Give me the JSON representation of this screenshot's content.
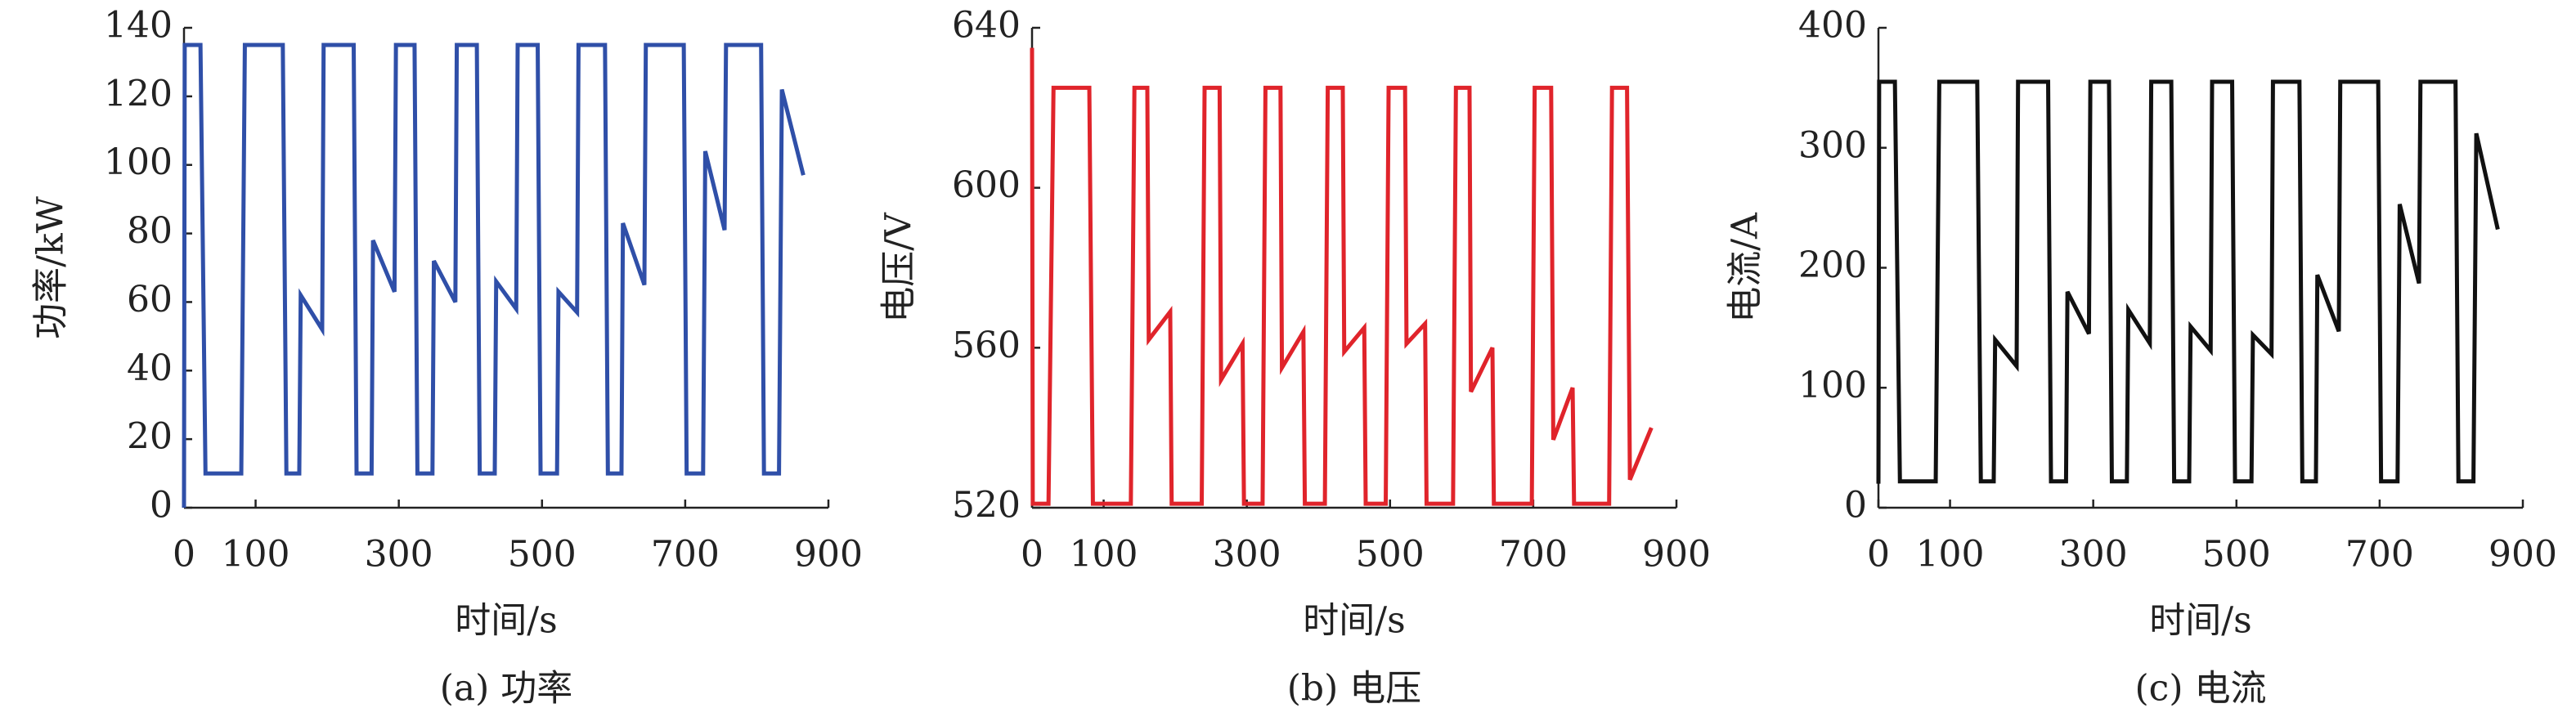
{
  "chart_data": [
    {
      "type": "line",
      "caption": "(a) 功率",
      "ylabel": "功率/kW",
      "xlabel": "时间/s",
      "xlim": [
        0,
        900
      ],
      "xticks": [
        0,
        100,
        300,
        500,
        700,
        900
      ],
      "ylim": [
        0,
        140
      ],
      "yticks": [
        0,
        20,
        40,
        60,
        80,
        100,
        120,
        140
      ],
      "x": [
        0,
        1,
        23,
        30,
        80,
        85,
        138,
        143,
        161,
        163,
        193,
        195,
        237,
        241,
        262,
        264,
        294,
        296,
        322,
        326,
        347,
        349,
        379,
        381,
        409,
        413,
        434,
        436,
        464,
        466,
        494,
        498,
        521,
        523,
        549,
        551,
        588,
        592,
        611,
        613,
        643,
        645,
        698,
        702,
        725,
        728,
        755,
        757,
        806,
        810,
        831,
        835,
        865
      ],
      "color": "#2f4fa8",
      "values": [
        0,
        135,
        135,
        10,
        10,
        135,
        135,
        10,
        10,
        62,
        52,
        135,
        135,
        10,
        10,
        78,
        63,
        135,
        135,
        10,
        10,
        72,
        60,
        135,
        135,
        10,
        10,
        66,
        58,
        135,
        135,
        10,
        10,
        63,
        57,
        135,
        135,
        10,
        10,
        83,
        65,
        135,
        135,
        10,
        10,
        104,
        81,
        135,
        135,
        10,
        10,
        122,
        97
      ]
    },
    {
      "type": "line",
      "caption": "(b) 电压",
      "ylabel": "电压/V",
      "xlabel": "时间/s",
      "xlim": [
        0,
        900
      ],
      "xticks": [
        0,
        100,
        300,
        500,
        700,
        900
      ],
      "ylim": [
        520,
        640
      ],
      "yticks": [
        520,
        560,
        600,
        640
      ],
      "x": [
        0,
        1,
        23,
        30,
        80,
        85,
        138,
        143,
        161,
        163,
        193,
        195,
        237,
        241,
        262,
        264,
        294,
        296,
        322,
        326,
        347,
        349,
        379,
        381,
        409,
        413,
        434,
        436,
        464,
        466,
        494,
        498,
        521,
        523,
        549,
        551,
        588,
        592,
        611,
        613,
        643,
        645,
        698,
        702,
        725,
        728,
        755,
        757,
        806,
        810,
        831,
        835,
        865
      ],
      "color": "#e0242b",
      "values": [
        635,
        521,
        521,
        625,
        625,
        521,
        521,
        625,
        625,
        562,
        569,
        521,
        521,
        625,
        625,
        552,
        561,
        521,
        521,
        625,
        625,
        555,
        564,
        521,
        521,
        625,
        625,
        559,
        565,
        521,
        521,
        625,
        625,
        561,
        566,
        521,
        521,
        625,
        625,
        549,
        560,
        521,
        521,
        625,
        625,
        537,
        550,
        521,
        521,
        625,
        625,
        527,
        540
      ]
    },
    {
      "type": "line",
      "caption": "(c) 电流",
      "ylabel": "电流/A",
      "xlabel": "时间/s",
      "xlim": [
        0,
        900
      ],
      "xticks": [
        0,
        100,
        300,
        500,
        700,
        900
      ],
      "ylim": [
        0,
        400
      ],
      "yticks": [
        0,
        100,
        200,
        300,
        400
      ],
      "x": [
        0,
        1,
        23,
        30,
        80,
        85,
        138,
        143,
        161,
        163,
        193,
        195,
        237,
        241,
        262,
        264,
        294,
        296,
        322,
        326,
        347,
        349,
        379,
        381,
        409,
        413,
        434,
        436,
        464,
        466,
        494,
        498,
        521,
        523,
        549,
        551,
        588,
        592,
        611,
        613,
        643,
        645,
        698,
        702,
        725,
        728,
        755,
        757,
        806,
        810,
        831,
        835,
        865
      ],
      "color": "#111111",
      "values": [
        20,
        355,
        355,
        22,
        22,
        355,
        355,
        22,
        22,
        140,
        118,
        355,
        355,
        22,
        22,
        180,
        145,
        355,
        355,
        22,
        22,
        165,
        137,
        355,
        355,
        22,
        22,
        151,
        131,
        355,
        355,
        22,
        22,
        144,
        128,
        355,
        355,
        22,
        22,
        194,
        147,
        355,
        355,
        22,
        22,
        253,
        187,
        355,
        355,
        22,
        22,
        312,
        232
      ]
    }
  ]
}
